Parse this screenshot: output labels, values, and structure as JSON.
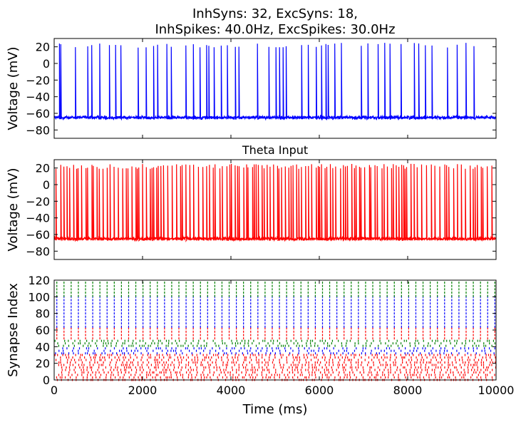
{
  "chart_data": [
    {
      "type": "line",
      "title": "InhSyns: 32, ExcSyns: 18,",
      "subtitle": "InhSpikes: 40.0Hz, ExcSpikes: 30.0Hz",
      "xlabel": "",
      "ylabel": "Voltage (mV)",
      "xlim": [
        0,
        10000
      ],
      "ylim": [
        -90,
        30
      ],
      "yticks": [
        20,
        0,
        -20,
        -40,
        -60,
        -80
      ],
      "grid": false,
      "color": "#0000ff",
      "series": [
        {
          "baseline_mv": -65,
          "peak_mv": 25,
          "spike_times_ms": [
            120,
            150,
            480,
            760,
            850,
            1030,
            1250,
            1390,
            1510,
            1900,
            2080,
            2250,
            2340,
            2550,
            2650,
            2980,
            3150,
            3300,
            3450,
            3500,
            3620,
            3780,
            3920,
            4100,
            4180,
            4600,
            4860,
            5020,
            5100,
            5180,
            5250,
            5600,
            5750,
            5930,
            6050,
            6150,
            6200,
            6350,
            6500,
            6950,
            7100,
            7330,
            7480,
            7600,
            7850,
            8150,
            8250,
            8400,
            8550,
            8900,
            9120,
            9320,
            9500
          ]
        }
      ]
    },
    {
      "type": "line",
      "title": "Theta Input",
      "xlabel": "",
      "ylabel": "Voltage (mV)",
      "xlim": [
        0,
        10000
      ],
      "ylim": [
        -90,
        30
      ],
      "yticks": [
        20,
        0,
        -20,
        -40,
        -60,
        -80
      ],
      "grid": false,
      "color": "#ff0000",
      "series": [
        {
          "baseline_mv": -65,
          "peak_mv": 25,
          "spike_rate_hz": 14
        }
      ]
    },
    {
      "type": "scatter",
      "title": "",
      "xlabel": "Time (ms)",
      "ylabel": "Synapse Index",
      "xlim": [
        0,
        10000
      ],
      "ylim": [
        0,
        120
      ],
      "xticks": [
        0,
        2000,
        4000,
        6000,
        8000,
        10000
      ],
      "yticks": [
        0,
        20,
        40,
        60,
        80,
        100,
        120
      ],
      "grid": false,
      "groups": [
        {
          "color": "#ff0000",
          "index_range": [
            0,
            31
          ],
          "rate_hz": 40
        },
        {
          "color": "#0000ff",
          "index_range": [
            32,
            40
          ],
          "rate_hz": 30
        },
        {
          "color": "#008000",
          "index_range": [
            41,
            49
          ],
          "rate_hz": 30
        },
        {
          "color": "#ff0000",
          "index_range": [
            50,
            63
          ],
          "rhythmic_period_ms": 125
        },
        {
          "color": "#0000ff",
          "index_range": [
            64,
            100
          ],
          "rhythmic_period_ms": 125
        },
        {
          "color": "#008000",
          "index_range": [
            101,
            118
          ],
          "rhythmic_period_ms": 125
        }
      ]
    }
  ]
}
